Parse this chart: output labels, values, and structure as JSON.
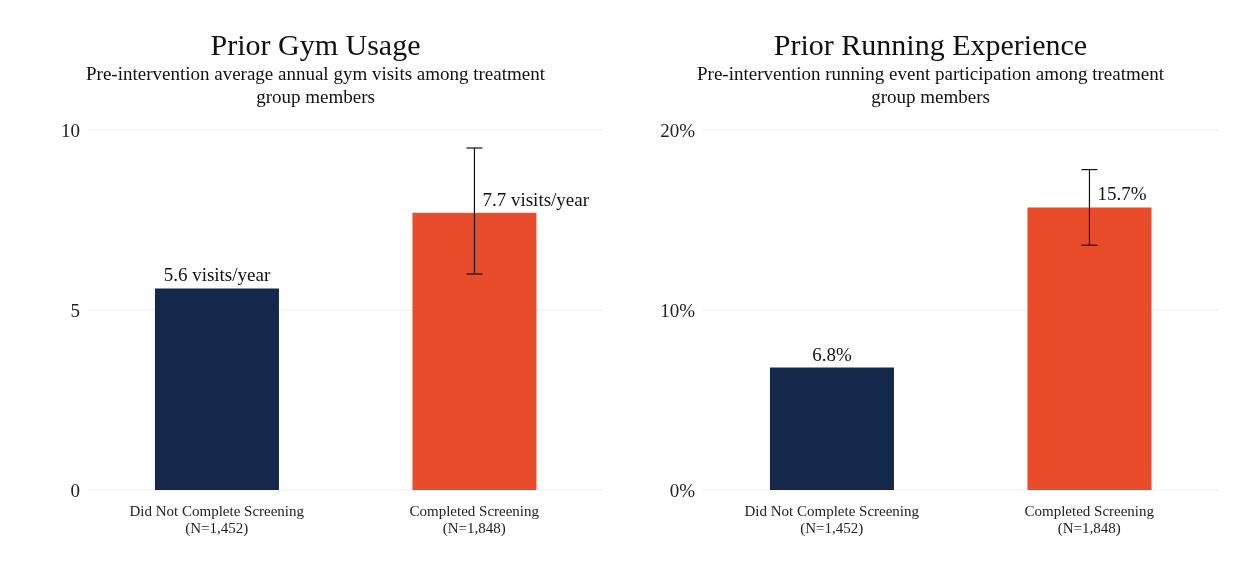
{
  "chart_data": [
    {
      "type": "bar",
      "title": "Prior Gym Usage",
      "subtitle": "Pre-intervention average annual gym visits among treatment group members",
      "categories": [
        "Did Not Complete Screening\n(N=1,452)",
        "Completed Screening\n(N=1,848)"
      ],
      "values": [
        5.6,
        7.7
      ],
      "colors": [
        "#14284b",
        "#e84c2b"
      ],
      "errors": [
        null,
        [
          6.0,
          9.5
        ]
      ],
      "value_labels": [
        "5.6 visits/year",
        "7.7 visits/year"
      ],
      "ylim": [
        0,
        10
      ],
      "yticks": [
        0,
        5,
        10
      ],
      "grid": "y"
    },
    {
      "type": "bar",
      "title": "Prior Running Experience",
      "subtitle": "Pre-intervention running event participation among treatment group members",
      "categories": [
        "Did Not Complete Screening\n(N=1,452)",
        "Completed Screening\n(N=1,848)"
      ],
      "values": [
        6.8,
        15.7
      ],
      "colors": [
        "#14284b",
        "#e84c2b"
      ],
      "errors": [
        null,
        [
          13.6,
          17.8
        ]
      ],
      "value_labels": [
        "6.8%",
        "15.7%"
      ],
      "ylim": [
        0,
        20
      ],
      "yticks": [
        {
          "value": 0,
          "label": "0%"
        },
        {
          "value": 10,
          "label": "10%"
        },
        {
          "value": 20,
          "label": "20%"
        }
      ],
      "grid": "y"
    }
  ]
}
